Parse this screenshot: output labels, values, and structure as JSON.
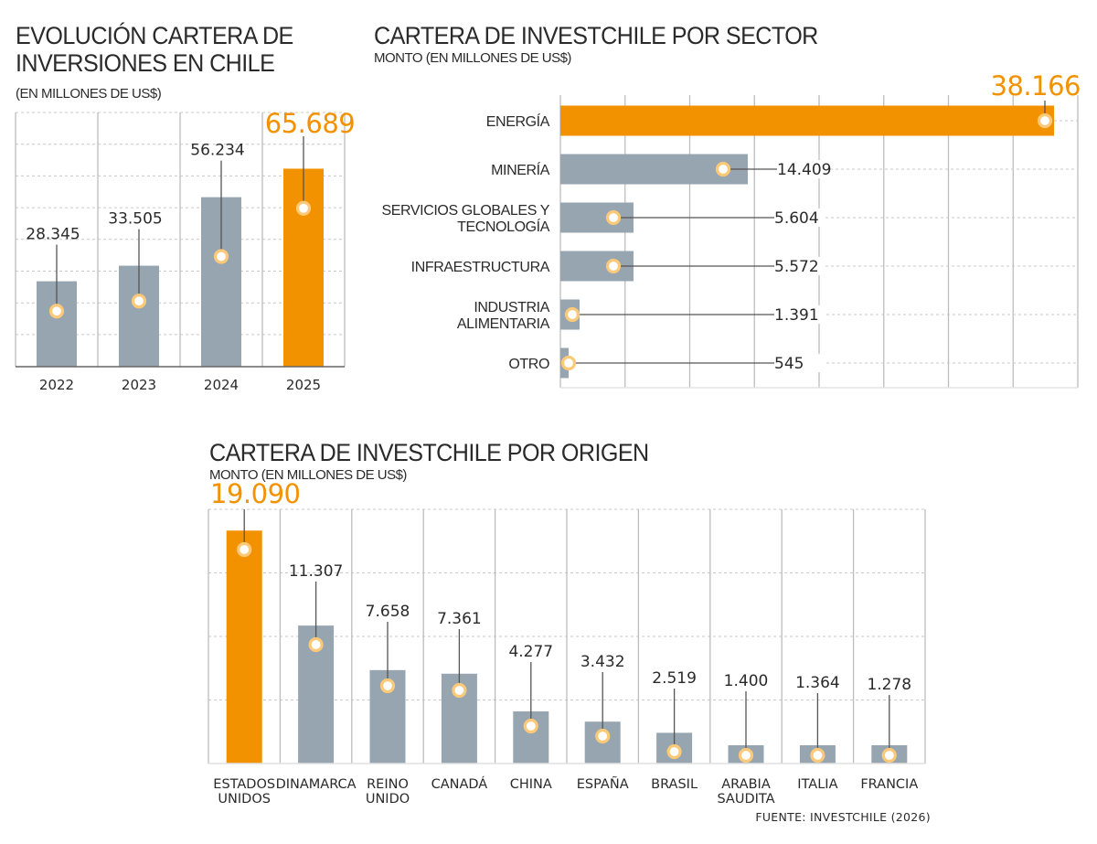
{
  "colors": {
    "highlight": "#f39200",
    "bar": "#97a5b0",
    "marker_ring": "#fbc978",
    "grid": "#c8c8c8",
    "text": "#2a2a2a"
  },
  "chart_data": [
    {
      "type": "bar",
      "title": "EVOLUCIÓN CARTERA DE INVERSIONES EN CHILE",
      "title_lines": [
        "EVOLUCIÓN CARTERA DE",
        "INVERSIONES EN CHILE"
      ],
      "subtitle": "(EN MILLONES DE US$)",
      "categories": [
        "2022",
        "2023",
        "2024",
        "2025"
      ],
      "values": [
        28345,
        33505,
        56234,
        65689
      ],
      "labels": [
        "28.345",
        "33.505",
        "56.234",
        "65.689"
      ],
      "highlight_index": 3,
      "xlabel": "",
      "ylabel": "",
      "ylim": [
        0,
        70000
      ],
      "grid": true,
      "legend": "none"
    },
    {
      "type": "bar",
      "orientation": "horizontal",
      "title": "CARTERA DE INVESTCHILE POR SECTOR",
      "subtitle": "MONTO (EN MILLONES DE US$)",
      "categories": [
        "ENERGÍA",
        "MINERÍA",
        "SERVICIOS GLOBALES Y TECNOLOGÍA",
        "INFRAESTRUCTURA",
        "INDUSTRIA ALIMENTARIA",
        "OTRO"
      ],
      "category_lines": [
        [
          "ENERGÍA"
        ],
        [
          "MINERÍA"
        ],
        [
          "SERVICIOS GLOBALES Y",
          "TECNOLOGÍA"
        ],
        [
          "INFRAESTRUCTURA"
        ],
        [
          "INDUSTRIA",
          "ALIMENTARIA"
        ],
        [
          "OTRO"
        ]
      ],
      "values": [
        38166,
        14409,
        5604,
        5572,
        1391,
        545
      ],
      "labels": [
        "38.166",
        "14.409",
        "5.604",
        "5.572",
        "1.391",
        "545"
      ],
      "highlight_index": 0,
      "xlim": [
        0,
        40000
      ],
      "grid": true,
      "legend": "none"
    },
    {
      "type": "bar",
      "title": "CARTERA DE INVESTCHILE POR ORIGEN",
      "subtitle": "MONTO (EN MILLONES DE US$)",
      "categories": [
        "ESTADOS UNIDOS",
        "DINAMARCA",
        "REINO UNIDO",
        "CANADÁ",
        "CHINA",
        "ESPAÑA",
        "BRASIL",
        "ARABIA SAUDITA",
        "ITALIA",
        "FRANCIA"
      ],
      "category_lines": [
        [
          "ESTADOS",
          "UNIDOS"
        ],
        [
          "DINAMARCA"
        ],
        [
          "REINO",
          "UNIDO"
        ],
        [
          "CANADÁ"
        ],
        [
          "CHINA"
        ],
        [
          "ESPAÑA"
        ],
        [
          "BRASIL"
        ],
        [
          "ARABIA",
          "SAUDITA"
        ],
        [
          "ITALIA"
        ],
        [
          "FRANCIA"
        ]
      ],
      "values": [
        19090,
        11307,
        7658,
        7361,
        4277,
        3432,
        2519,
        1400,
        1364,
        1278
      ],
      "labels": [
        "19.090",
        "11.307",
        "7.658",
        "7.361",
        "4.277",
        "3.432",
        "2.519",
        "1.400",
        "1.364",
        "1.278"
      ],
      "highlight_index": 0,
      "ylim": [
        0,
        20000
      ],
      "grid": true,
      "legend": "none"
    }
  ],
  "source": "FUENTE: INVESTCHILE (2026)"
}
